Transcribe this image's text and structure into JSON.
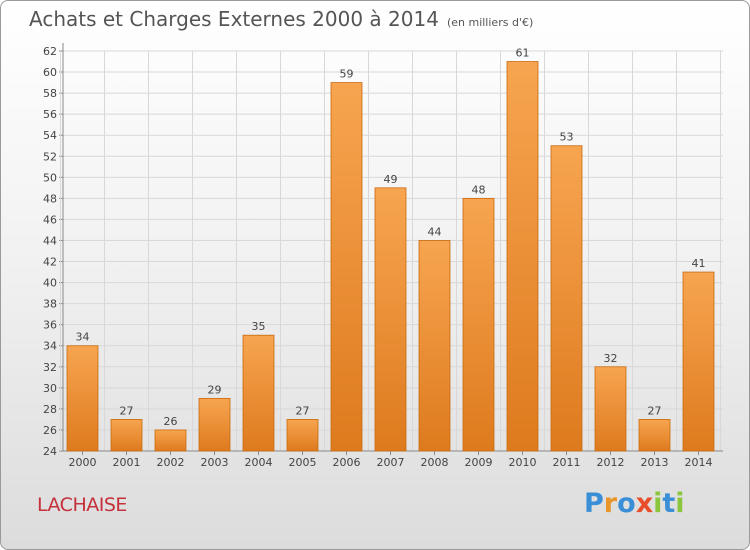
{
  "title": "Achats et Charges Externes 2000 à 2014",
  "subtitle": "(en milliers d'€)",
  "commune": "LACHAISE",
  "logo": {
    "text": "Proxiti",
    "letters": [
      "P",
      "r",
      "o",
      "x",
      "i",
      "t",
      "i"
    ],
    "colors": [
      "#3b8fd6",
      "#e8962a",
      "#3b8fd6",
      "#e84e2a",
      "#8cc63f",
      "#3b8fd6",
      "#8cc63f"
    ]
  },
  "colors": {
    "bar_light": "#f7a550",
    "bar_dark": "#de7a1e",
    "bar_edge": "#c96a10",
    "grid": "#d8d8d8",
    "text": "#444444"
  },
  "chart_data": {
    "type": "bar",
    "categories": [
      "2000",
      "2001",
      "2002",
      "2003",
      "2004",
      "2005",
      "2006",
      "2007",
      "2008",
      "2009",
      "2010",
      "2011",
      "2012",
      "2013",
      "2014"
    ],
    "values": [
      34,
      27,
      26,
      29,
      35,
      27,
      59,
      49,
      44,
      48,
      61,
      53,
      32,
      27,
      41
    ],
    "ylim": [
      24,
      62
    ],
    "yticks": [
      24,
      26,
      28,
      30,
      32,
      34,
      36,
      38,
      40,
      42,
      44,
      46,
      48,
      50,
      52,
      54,
      56,
      58,
      60,
      62
    ],
    "grid": true,
    "xlabel": "",
    "ylabel": ""
  }
}
